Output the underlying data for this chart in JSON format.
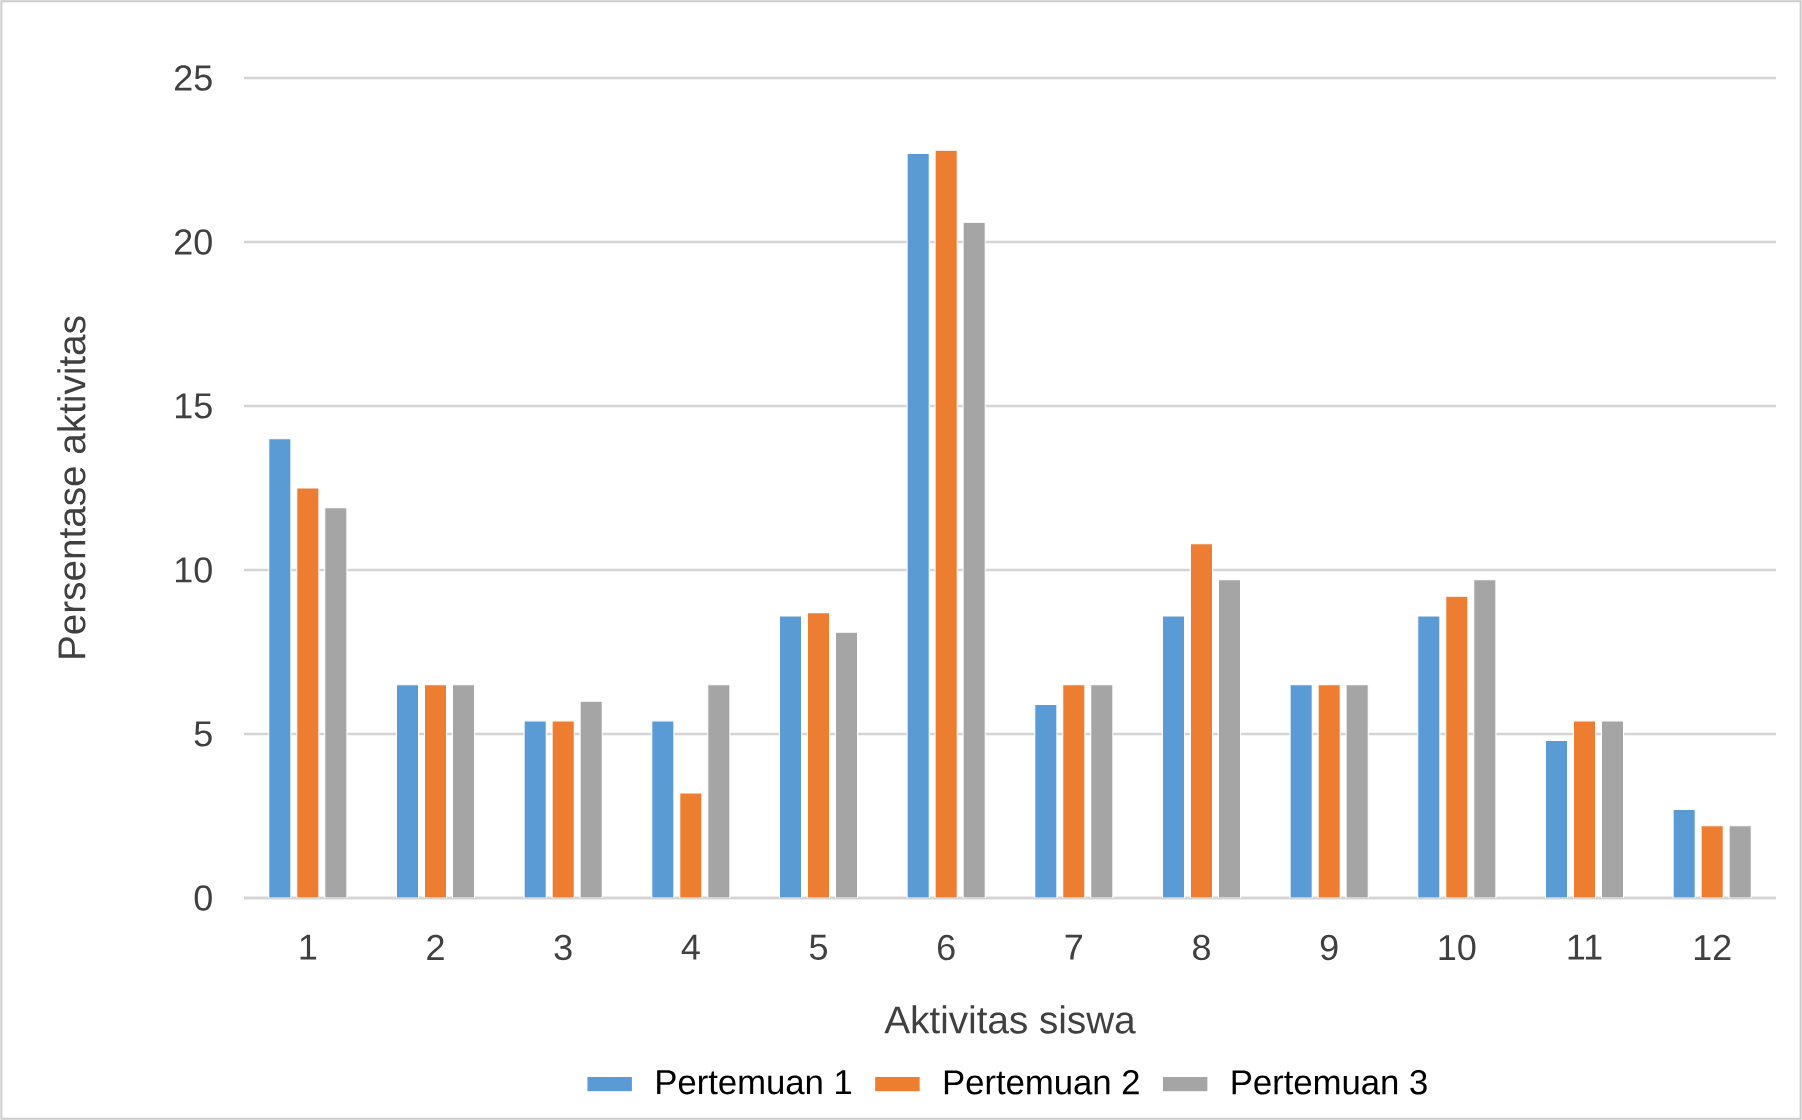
{
  "chart_data": {
    "type": "bar",
    "xlabel": "Aktivitas siswa",
    "ylabel": "Persentase aktivitas",
    "categories": [
      "1",
      "2",
      "3",
      "4",
      "5",
      "6",
      "7",
      "8",
      "9",
      "10",
      "11",
      "12"
    ],
    "series": [
      {
        "name": "Pertemuan 1",
        "color": "#5b9bd5",
        "values": [
          14.0,
          6.5,
          5.4,
          5.4,
          8.6,
          22.7,
          5.9,
          8.6,
          6.5,
          8.6,
          4.8,
          2.7
        ]
      },
      {
        "name": "Pertemuan 2",
        "color": "#ed7d31",
        "values": [
          12.5,
          6.5,
          5.4,
          3.2,
          8.7,
          22.8,
          6.5,
          10.8,
          6.5,
          9.2,
          5.4,
          2.2
        ]
      },
      {
        "name": "Pertemuan 3",
        "color": "#a5a5a5",
        "values": [
          11.9,
          6.5,
          6.0,
          6.5,
          8.1,
          20.6,
          6.5,
          9.7,
          6.5,
          9.7,
          5.4,
          2.2
        ]
      }
    ],
    "ylim": [
      0,
      25
    ],
    "yticks": [
      0,
      5,
      10,
      15,
      20,
      25
    ],
    "grid": "y",
    "legend": "bottom"
  }
}
